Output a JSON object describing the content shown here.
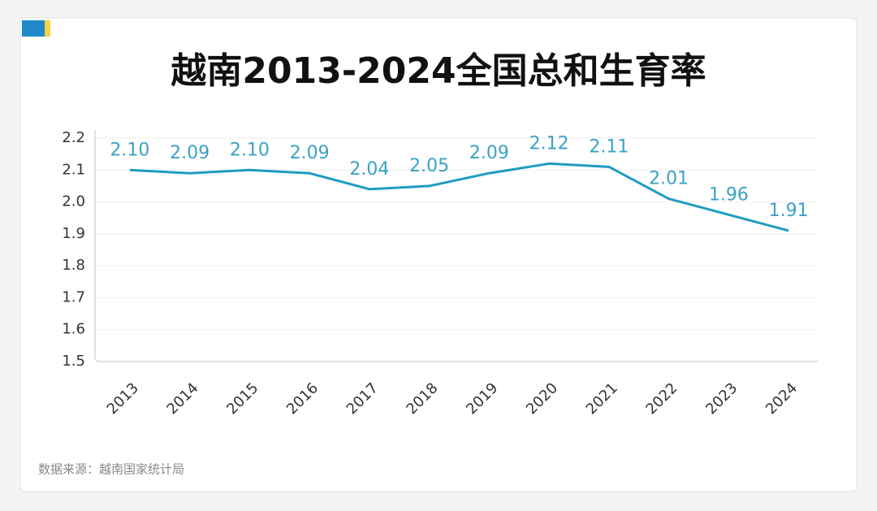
{
  "chart_data": {
    "type": "line",
    "title": "越南2013-2024全国总和生育率",
    "categories": [
      "2013",
      "2014",
      "2015",
      "2016",
      "2017",
      "2018",
      "2019",
      "2020",
      "2021",
      "2022",
      "2023",
      "2024"
    ],
    "series": [
      {
        "color": "#1f9cc2",
        "values": [
          2.1,
          2.09,
          2.1,
          2.09,
          2.04,
          2.05,
          2.09,
          2.12,
          2.11,
          2.01,
          1.96,
          1.91
        ],
        "value_labels": [
          "2.10",
          "2.09",
          "2.10",
          "2.09",
          "2.04",
          "2.05",
          "2.09",
          "2.12",
          "2.11",
          "2.01",
          "1.96",
          "1.91"
        ]
      }
    ],
    "ylim": [
      1.5,
      2.2
    ],
    "yticks": [
      1.5,
      1.6,
      1.7,
      1.8,
      1.9,
      {
        "value": 2,
        "label": "2.0"
      },
      2.1,
      2.2
    ],
    "grid": true,
    "source": "数据来源：越南国家统计局"
  }
}
